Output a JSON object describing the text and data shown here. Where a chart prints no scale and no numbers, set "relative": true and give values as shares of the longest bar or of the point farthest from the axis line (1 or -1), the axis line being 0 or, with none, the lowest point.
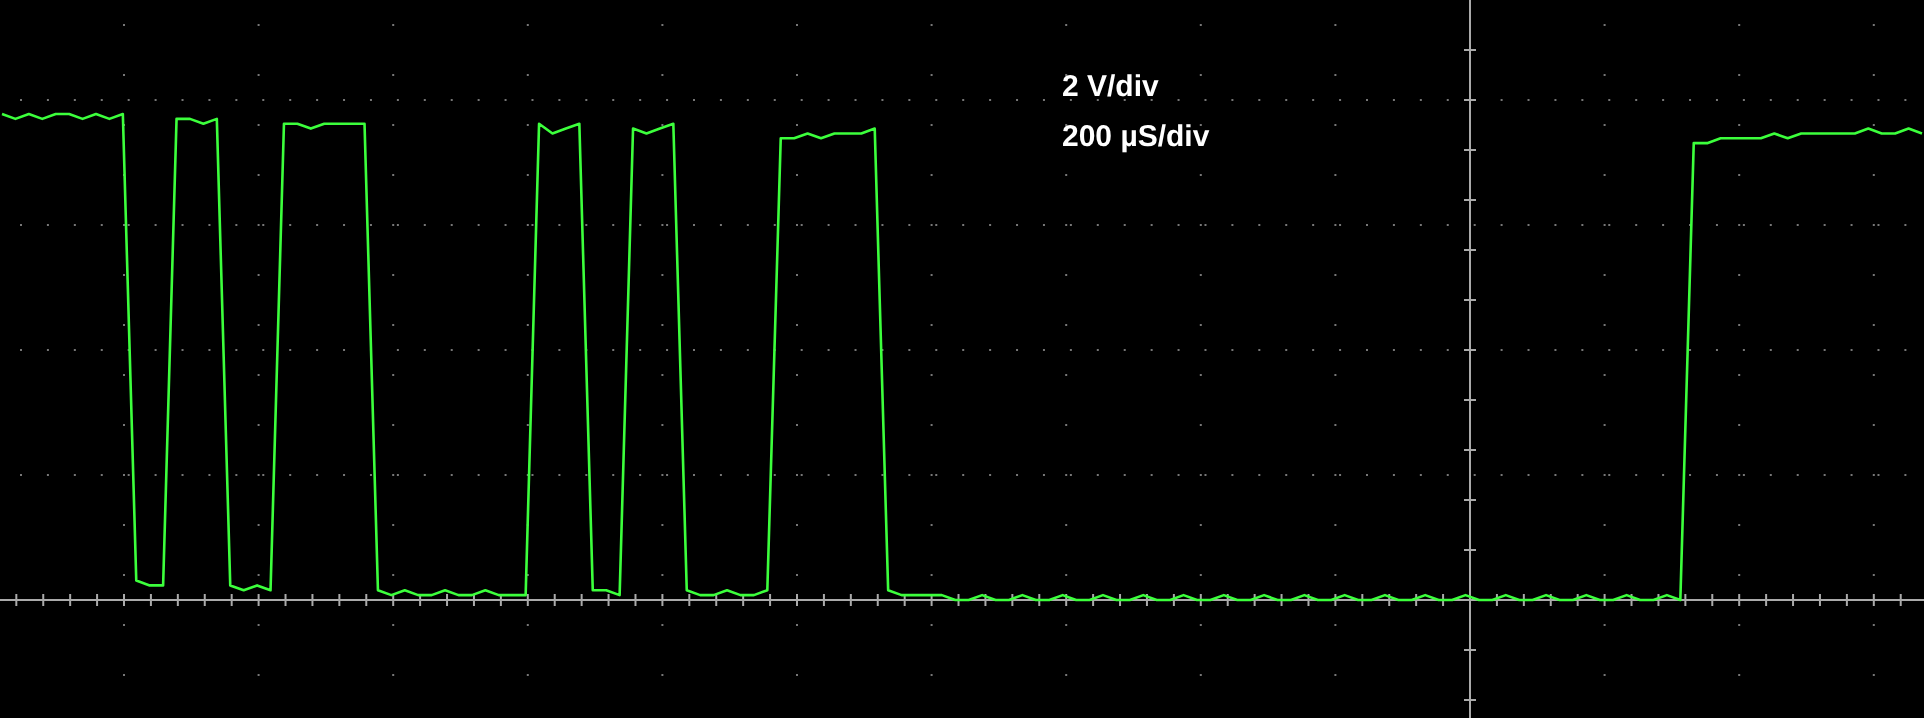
{
  "chart_data": {
    "type": "line",
    "relative": true,
    "grid": true,
    "marker": "none",
    "line_style": "solid",
    "annotations": [
      "2 V/div",
      "200 µS/div"
    ],
    "categories": [
      null,
      null,
      null,
      null,
      null,
      null,
      null,
      null,
      null,
      null,
      null,
      null,
      null,
      null,
      null,
      null,
      null,
      null,
      null,
      null,
      null,
      null,
      null,
      null,
      null,
      null,
      null,
      null,
      null,
      null,
      null,
      null,
      null,
      null,
      null,
      null,
      null,
      null,
      null,
      null,
      null,
      null,
      null,
      null,
      null,
      null,
      null,
      null,
      null,
      null,
      null,
      null,
      null,
      null,
      null,
      null,
      null,
      null,
      null,
      null,
      null,
      null,
      null,
      null,
      null,
      null,
      null,
      null,
      null,
      null,
      null,
      null,
      null,
      null,
      null,
      null,
      null,
      null,
      null,
      null,
      null,
      null,
      null,
      null,
      null,
      null,
      null,
      null,
      null,
      null,
      null,
      null,
      null,
      null,
      null,
      null,
      null,
      null,
      null,
      null,
      null,
      null,
      null,
      null,
      null,
      null,
      null,
      null,
      null,
      null,
      null,
      null,
      null,
      null,
      null,
      null,
      null,
      null,
      null,
      null,
      null,
      null,
      null,
      null,
      null,
      null,
      null,
      null,
      null,
      null,
      null,
      null,
      null,
      null,
      null,
      null,
      null,
      null,
      null,
      null,
      null,
      null,
      null,
      null
    ],
    "series": [
      {
        "color": "#3cff3c",
        "values": [
          1.0,
          0.99,
          1.0,
          0.99,
          1.0,
          1.0,
          0.99,
          1.0,
          0.99,
          1.0,
          0.04,
          0.03,
          0.03,
          0.99,
          0.99,
          0.98,
          0.99,
          0.03,
          0.02,
          0.03,
          0.02,
          0.98,
          0.98,
          0.97,
          0.98,
          0.98,
          0.98,
          0.98,
          0.02,
          0.01,
          0.02,
          0.01,
          0.01,
          0.02,
          0.01,
          0.01,
          0.02,
          0.01,
          0.01,
          0.01,
          0.98,
          0.96,
          0.97,
          0.98,
          0.02,
          0.02,
          0.01,
          0.97,
          0.96,
          0.97,
          0.98,
          0.02,
          0.01,
          0.01,
          0.02,
          0.01,
          0.01,
          0.02,
          0.95,
          0.95,
          0.96,
          0.95,
          0.96,
          0.96,
          0.96,
          0.97,
          0.02,
          0.01,
          0.01,
          0.01,
          0.01,
          0,
          0,
          0.01,
          0,
          0,
          0.01,
          0,
          0,
          0.01,
          0,
          0,
          0.01,
          0,
          0,
          0.01,
          0,
          0,
          0.01,
          0,
          0,
          0.01,
          0,
          0,
          0.01,
          0,
          0,
          0.01,
          0,
          0,
          0.01,
          0,
          0,
          0.01,
          0,
          0,
          0.01,
          0,
          0,
          0.01,
          0,
          0,
          0.01,
          0,
          0,
          0.01,
          0,
          0,
          0.01,
          0,
          0,
          0.01,
          0,
          0,
          0.01,
          0,
          0.94,
          0.94,
          0.95,
          0.95,
          0.95,
          0.95,
          0.96,
          0.95,
          0.96,
          0.96,
          0.96,
          0.96,
          0.96,
          0.97,
          0.96,
          0.96,
          0.97,
          0.96
        ]
      }
    ]
  }
}
